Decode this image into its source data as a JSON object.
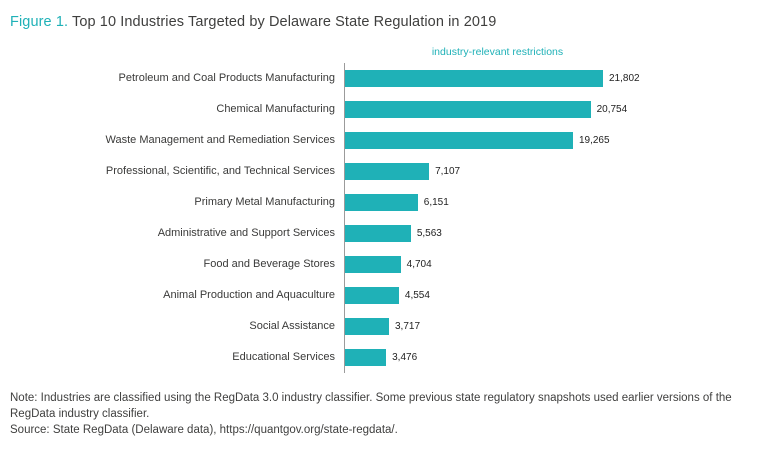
{
  "title": {
    "prefix": "Figure 1.",
    "text": " Top 10 Industries Targeted by Delaware State Regulation in 2019"
  },
  "chart_data": {
    "type": "bar",
    "orientation": "horizontal",
    "series_label": "industry-relevant restrictions",
    "categories": [
      "Petroleum and Coal Products Manufacturing",
      "Chemical Manufacturing",
      "Waste Management and Remediation Services",
      "Professional, Scientific, and Technical Services",
      "Primary Metal Manufacturing",
      "Administrative and Support Services",
      "Food and Beverage Stores",
      "Animal Production and Aquaculture",
      "Social Assistance",
      "Educational Services"
    ],
    "values": [
      21802,
      20754,
      19265,
      7107,
      6151,
      5563,
      4704,
      4554,
      3717,
      3476
    ],
    "value_labels": [
      "21,802",
      "20,754",
      "19,265",
      "7,107",
      "6,151",
      "5,563",
      "4,704",
      "4,554",
      "3,717",
      "3,476"
    ],
    "xlim": [
      0,
      21802
    ],
    "grid": false,
    "legend_position": "top"
  },
  "notes": {
    "note": "Note: Industries are classified using the RegData 3.0 industry classifier. Some previous state regulatory snapshots used earlier versions of the RegData industry classifier.",
    "source": "Source: State RegData (Delaware data), https://quantgov.org/state-regdata/."
  },
  "colors": {
    "accent": "#1fb1b7",
    "bar": "#1fb1b7",
    "text": "#3f3f3e",
    "axis": "#9b9b9b"
  }
}
